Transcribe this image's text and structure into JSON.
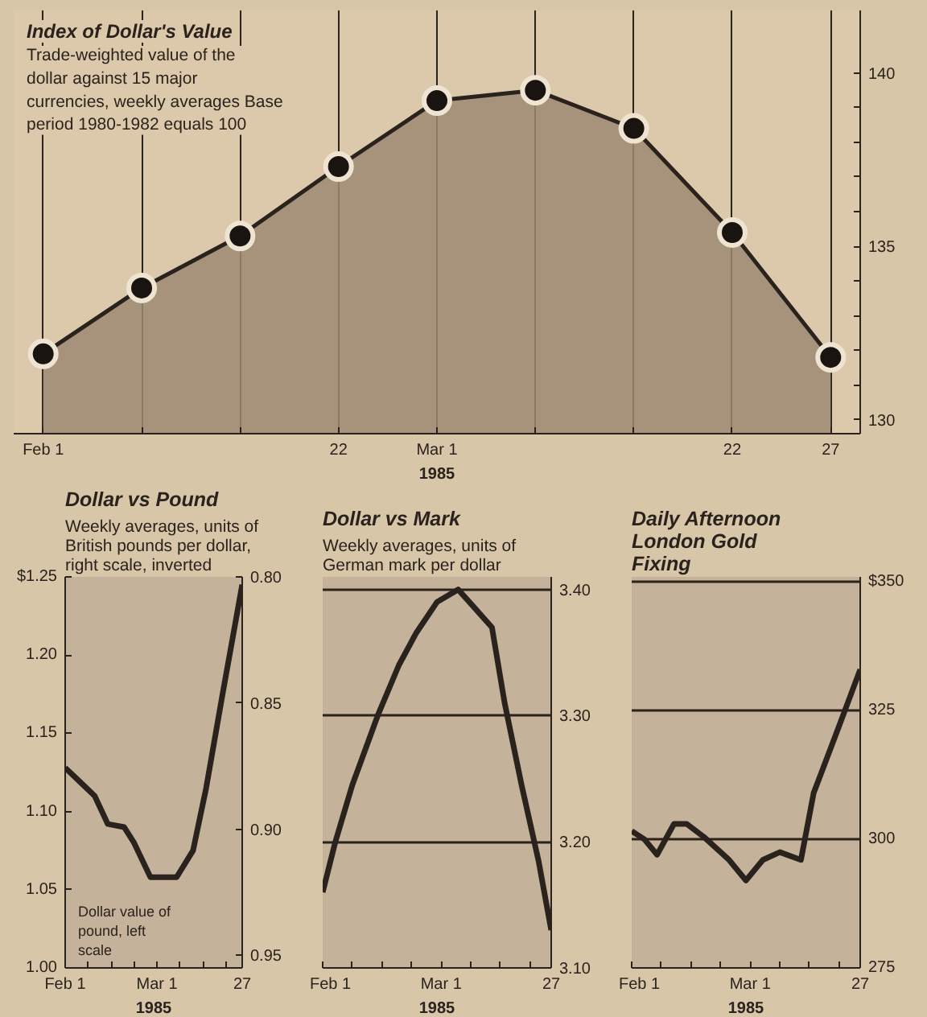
{
  "chart_data": [
    {
      "type": "area",
      "title": "Index of Dollar's Value",
      "subtitle": "Trade-weighted value of the dollar against 15 major currencies, weekly averages Base period 1980-1982 equals 100",
      "categories": [
        "Feb 1",
        null,
        null,
        "22",
        "Mar 1",
        null,
        null,
        "22",
        "27"
      ],
      "series": [
        {
          "color": "#9e8a72",
          "values": [
            131.9,
            133.8,
            135.3,
            137.3,
            139.2,
            139.5,
            138.4,
            135.4,
            131.8
          ]
        }
      ],
      "marker": "circle",
      "grid": "x",
      "ylim": [
        129.6,
        141.8
      ],
      "yticks": [
        130,
        {
          "value": 131,
          "label": null
        },
        {
          "value": 132,
          "label": null
        },
        {
          "value": 133,
          "label": null
        },
        {
          "value": 134,
          "label": null
        },
        135,
        {
          "value": 136,
          "label": null
        },
        {
          "value": 137,
          "label": null
        },
        {
          "value": 138,
          "label": null
        },
        {
          "value": 139,
          "label": null
        },
        140
      ],
      "xlabel": "1985"
    },
    {
      "type": "line",
      "title": "Dollar vs Pound",
      "subtitle": "Weekly averages, units of British pounds per dollar, right scale, inverted",
      "x": [
        "1985-02-01",
        "1985-02-06",
        "1985-02-10",
        "1985-02-14",
        "1985-02-19",
        "1985-02-22",
        "1985-02-27",
        "1985-03-07",
        "1985-03-12",
        "1985-03-16",
        "1985-03-21",
        "1985-03-24",
        "1985-03-27"
      ],
      "series": [
        {
          "color": "#2a221c",
          "values": [
            1.128,
            1.118,
            1.11,
            1.092,
            1.09,
            1.08,
            1.058,
            1.058,
            1.075,
            1.115,
            1.175,
            1.21,
            1.245
          ]
        }
      ],
      "xlim": [
        "1985-02-01",
        "1985-03-27"
      ],
      "xticks": [
        {
          "value": "1985-02-01",
          "label": "Feb 1"
        },
        {
          "value": "1985-02-08",
          "label": null
        },
        {
          "value": "1985-02-15",
          "label": null
        },
        {
          "value": "1985-02-22",
          "label": null
        },
        {
          "value": "1985-03-01",
          "label": "Mar 1"
        },
        {
          "value": "1985-03-08",
          "label": null
        },
        {
          "value": "1985-03-15",
          "label": null
        },
        {
          "value": "1985-03-22",
          "label": null
        },
        {
          "value": "1985-03-27",
          "label": "27"
        }
      ],
      "ylim": [
        1.0,
        1.25
      ],
      "yticks": [
        {
          "value": 1.0,
          "label": "1.00"
        },
        1.05,
        {
          "value": 1.1,
          "label": "1.10"
        },
        1.15,
        {
          "value": 1.2,
          "label": "1.20"
        },
        {
          "value": 1.25,
          "label": "$1.25"
        }
      ],
      "y2lim": [
        0.955,
        0.8
      ],
      "y2ticks": [
        {
          "value": 0.8,
          "label": "0.80"
        },
        0.85,
        {
          "value": 0.9,
          "label": "0.90"
        },
        0.95
      ],
      "annotations": [
        "Dollar value of pound, left scale"
      ],
      "xlabel": "1985"
    },
    {
      "type": "line",
      "title": "Dollar vs Mark",
      "subtitle": "Weekly averages, units of German mark per dollar",
      "x": [
        "1985-02-01",
        "1985-02-04",
        "1985-02-08",
        "1985-02-14",
        "1985-02-19",
        "1985-02-23",
        "1985-02-28",
        "1985-03-05",
        "1985-03-09",
        "1985-03-13",
        "1985-03-16",
        "1985-03-20",
        "1985-03-24",
        "1985-03-27"
      ],
      "series": [
        {
          "color": "#2a221c",
          "values": [
            3.16,
            3.2,
            3.245,
            3.3,
            3.34,
            3.365,
            3.39,
            3.4,
            3.385,
            3.37,
            3.31,
            3.245,
            3.185,
            3.13
          ]
        }
      ],
      "xlim": [
        "1985-02-01",
        "1985-03-27"
      ],
      "xticks": [
        {
          "value": "1985-02-01",
          "label": "Feb 1"
        },
        {
          "value": "1985-02-08",
          "label": null
        },
        {
          "value": "1985-02-15",
          "label": null
        },
        {
          "value": "1985-02-22",
          "label": null
        },
        {
          "value": "1985-03-01",
          "label": "Mar 1"
        },
        {
          "value": "1985-03-08",
          "label": null
        },
        {
          "value": "1985-03-15",
          "label": null
        },
        {
          "value": "1985-03-22",
          "label": null
        },
        {
          "value": "1985-03-27",
          "label": "27"
        }
      ],
      "ylim": [
        3.1,
        3.41
      ],
      "yticks": [
        {
          "value": 3.1,
          "label": "3.10"
        },
        {
          "value": 3.2,
          "label": "3.20"
        },
        {
          "value": 3.3,
          "label": "3.30"
        },
        {
          "value": 3.4,
          "label": "3.40"
        }
      ],
      "grid": "y",
      "xlabel": "1985"
    },
    {
      "type": "line",
      "title": "Daily Afternoon London Gold Fixing",
      "x": [
        "1985-02-01",
        "1985-02-04",
        "1985-02-07",
        "1985-02-11",
        "1985-02-14",
        "1985-02-18",
        "1985-02-24",
        "1985-02-28",
        "1985-03-04",
        "1985-03-08",
        "1985-03-13",
        "1985-03-16",
        "1985-03-22",
        "1985-03-27"
      ],
      "series": [
        {
          "color": "#2a221c",
          "values": [
            301.6,
            300,
            297,
            303,
            303,
            300.5,
            296,
            292,
            296,
            297.5,
            296,
            309,
            322,
            333
          ]
        }
      ],
      "xlim": [
        "1985-02-01",
        "1985-03-27"
      ],
      "xticks": [
        {
          "value": "1985-02-01",
          "label": "Feb 1"
        },
        {
          "value": "1985-02-08",
          "label": null
        },
        {
          "value": "1985-02-15",
          "label": null
        },
        {
          "value": "1985-02-22",
          "label": null
        },
        {
          "value": "1985-03-01",
          "label": "Mar 1"
        },
        {
          "value": "1985-03-08",
          "label": null
        },
        {
          "value": "1985-03-15",
          "label": null
        },
        {
          "value": "1985-03-22",
          "label": null
        },
        {
          "value": "1985-03-27",
          "label": "27"
        }
      ],
      "ylim": [
        275,
        351
      ],
      "yticks": [
        275,
        300,
        325,
        {
          "value": 350,
          "label": "$350"
        }
      ],
      "grid": "y",
      "xlabel": "1985"
    }
  ]
}
